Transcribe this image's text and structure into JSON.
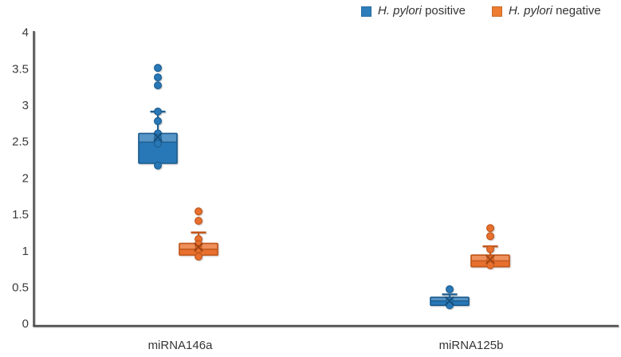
{
  "chart_data": {
    "type": "box",
    "title": "",
    "categories": [
      "miRNA146a",
      "miRNA125b"
    ],
    "y_axis": {
      "label": "",
      "min": 0,
      "max": 4,
      "tick_step": 0.5,
      "tick_labels": [
        "0",
        "0.5",
        "1",
        "1.5",
        "2",
        "2.5",
        "3",
        "3.5",
        "4"
      ]
    },
    "grid": false,
    "legend_position": "top-right",
    "legend": [
      {
        "species": "H. pylori",
        "status": "positive",
        "color": "#2E7EBB"
      },
      {
        "species": "H. pylori",
        "status": "negative",
        "color": "#ED7D31"
      }
    ],
    "series": [
      {
        "name": "H. pylori positive",
        "fill": "#2878B8",
        "stroke": "#1D5E90",
        "mean_color": "#174F7C",
        "boxes": [
          {
            "category": "miRNA146a",
            "q1": 2.2,
            "median": 2.49,
            "q3": 2.61,
            "mean": 2.56,
            "whisker_low": 2.2,
            "whisker_high": 2.91,
            "points": [
              3.51,
              3.38,
              3.27,
              2.91,
              2.78,
              2.61,
              2.55,
              2.47,
              2.17
            ]
          },
          {
            "category": "miRNA125b",
            "q1": 0.25,
            "median": 0.31,
            "q3": 0.36,
            "mean": 0.31,
            "whisker_low": 0.25,
            "whisker_high": 0.4,
            "points": [
              0.47,
              0.31,
              0.25
            ]
          }
        ]
      },
      {
        "name": "H. pylori negative",
        "fill": "#E8702E",
        "stroke": "#C2571B",
        "mean_color": "#9E4413",
        "boxes": [
          {
            "category": "miRNA146a",
            "q1": 0.94,
            "median": 1.02,
            "q3": 1.1,
            "mean": 1.05,
            "whisker_low": 0.94,
            "whisker_high": 1.25,
            "points": [
              1.54,
              1.41,
              1.16,
              1.09,
              1.02,
              0.92
            ]
          },
          {
            "category": "miRNA125b",
            "q1": 0.78,
            "median": 0.86,
            "q3": 0.94,
            "mean": 0.88,
            "whisker_low": 0.78,
            "whisker_high": 1.06,
            "points": [
              1.31,
              1.2,
              1.02,
              0.88,
              0.8
            ]
          }
        ]
      }
    ]
  }
}
